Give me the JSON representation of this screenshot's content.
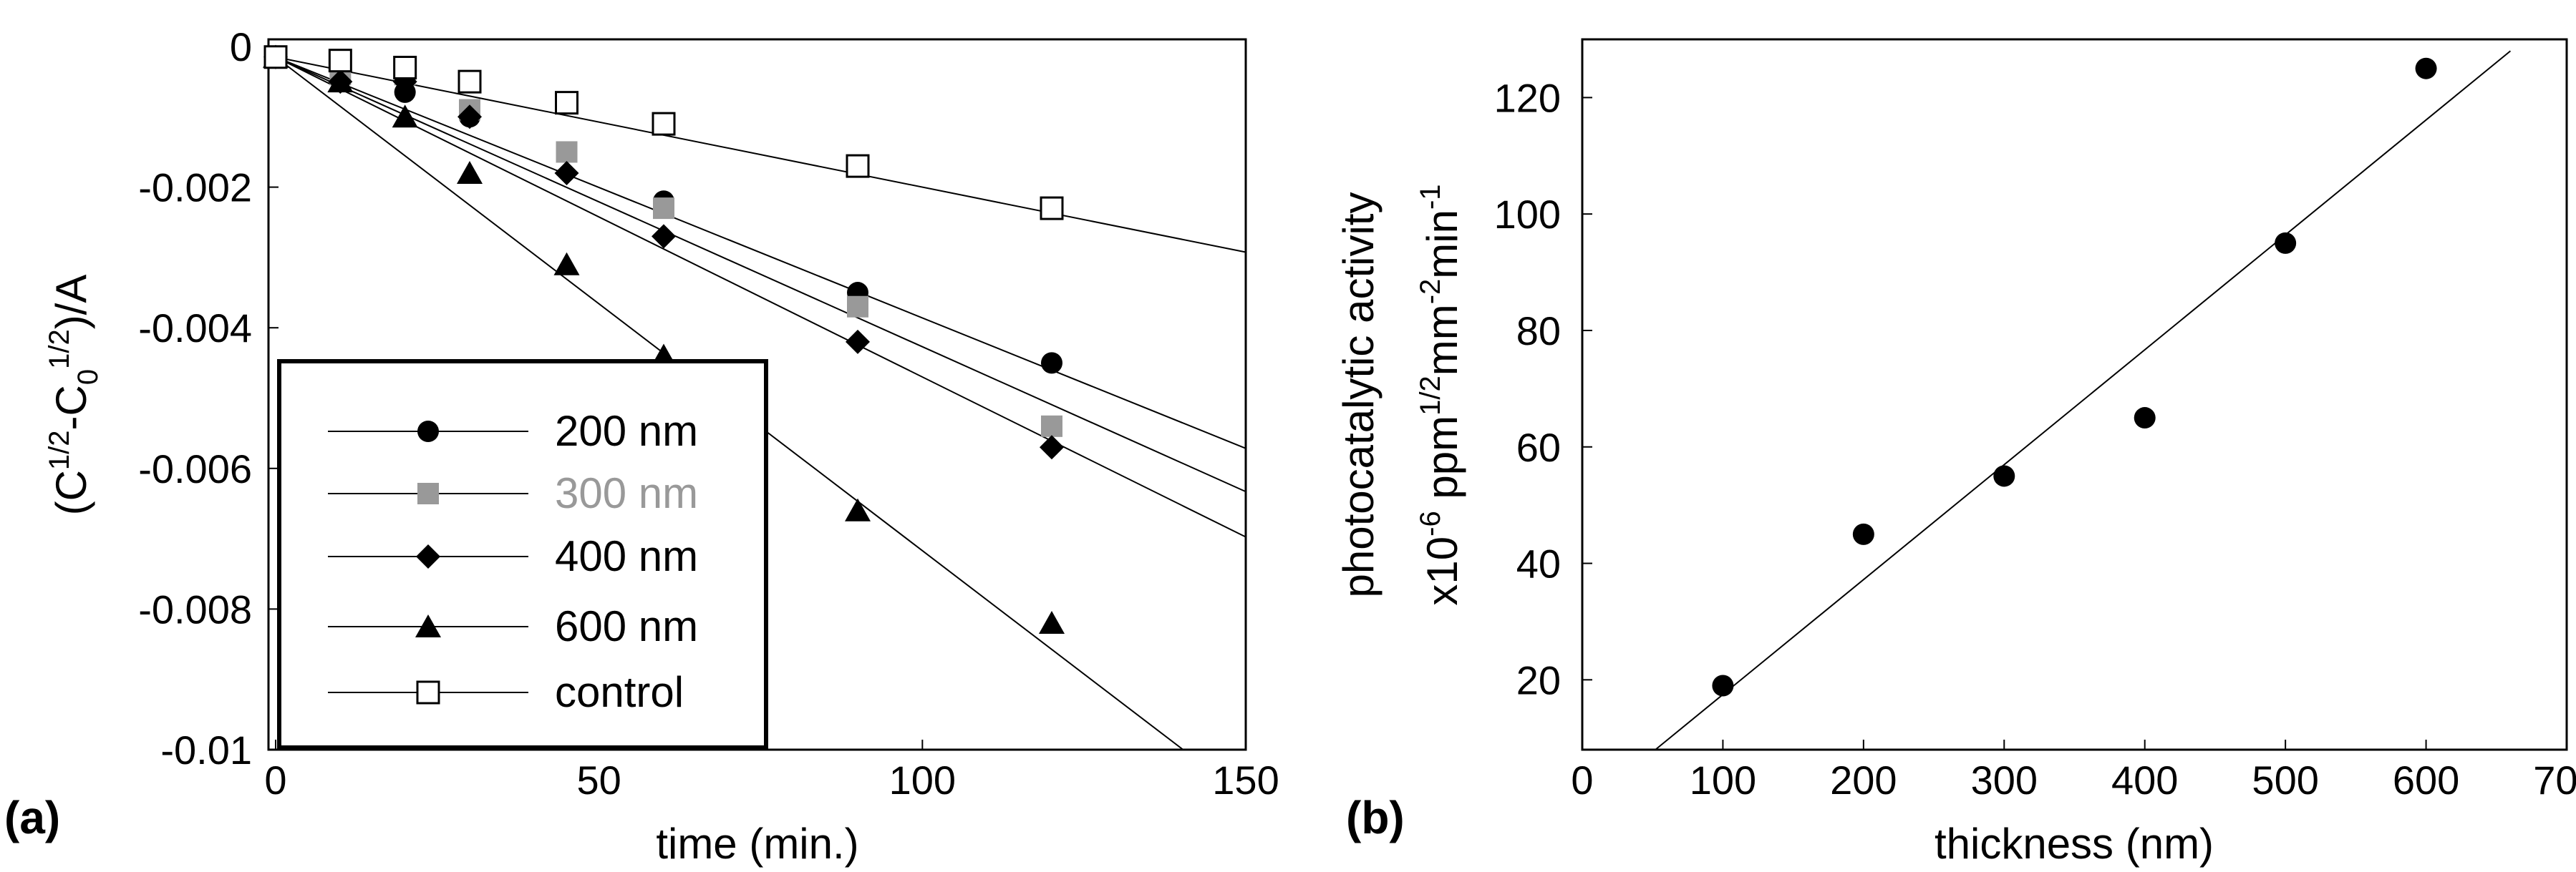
{
  "chart_data": [
    {
      "panel_label": "(a)",
      "type": "scatter",
      "xlabel": "time (min.)",
      "ylabel": {
        "base": "(C",
        "sup1": "1/2",
        "mid": "-C",
        "sub": "0",
        "sup2": "1/2",
        "tail": ")/A"
      },
      "xlim": [
        0,
        150
      ],
      "ylim": [
        -0.01,
        0
      ],
      "xticks": [
        0,
        50,
        100,
        150
      ],
      "xtick_labels": [
        "0",
        "50",
        "100",
        "150"
      ],
      "yticks": [
        0,
        -0.002,
        -0.004,
        -0.006,
        -0.008,
        -0.01
      ],
      "ytick_labels": [
        "0",
        "-0.002",
        "-0.004",
        "-0.006",
        "-0.008",
        "-0.01"
      ],
      "grid": false,
      "legend_position": "bottom-left",
      "series": [
        {
          "name": "200 nm",
          "marker": "circle",
          "color": "#000000",
          "x": [
            0,
            10,
            20,
            30,
            45,
            60,
            90,
            120
          ],
          "y": [
            -0.00015,
            -0.0003,
            -0.00065,
            -0.001,
            -0.0015,
            -0.0022,
            -0.0035,
            -0.0045
          ],
          "fit_slope": -3.71e-05
        },
        {
          "name": "300 nm",
          "marker": "square",
          "color": "#999999",
          "x": [
            0,
            10,
            20,
            30,
            45,
            60,
            90,
            120
          ],
          "y": [
            -0.00015,
            -0.0004,
            -0.0004,
            -0.0009,
            -0.0015,
            -0.0023,
            -0.0037,
            -0.0054
          ],
          "fit_slope": -4.12e-05
        },
        {
          "name": "400 nm",
          "marker": "diamond",
          "color": "#000000",
          "x": [
            0,
            10,
            20,
            30,
            45,
            60,
            90,
            120
          ],
          "y": [
            -0.00015,
            -0.0005,
            -0.0005,
            -0.001,
            -0.0018,
            -0.0027,
            -0.0042,
            -0.0057
          ],
          "fit_slope": -4.55e-05
        },
        {
          "name": "600 nm",
          "marker": "triangle",
          "color": "#000000",
          "x": [
            0,
            10,
            20,
            30,
            45,
            60,
            90,
            120
          ],
          "y": [
            -0.00015,
            -0.0005,
            -0.001,
            -0.0018,
            -0.0031,
            -0.0044,
            -0.0066,
            -0.0082
          ],
          "fit_slope": -7.02e-05
        },
        {
          "name": "control",
          "marker": "open-square",
          "color": "#000000",
          "x": [
            0,
            10,
            20,
            30,
            45,
            60,
            90,
            120
          ],
          "y": [
            -0.00015,
            -0.0002,
            -0.0003,
            -0.0005,
            -0.0008,
            -0.0011,
            -0.0017,
            -0.0023
          ],
          "fit_slope": -1.85e-05
        }
      ]
    },
    {
      "panel_label": "(b)",
      "type": "scatter",
      "xlabel": "thickness (nm)",
      "ylabel_line1": "photocatalytic activity",
      "ylabel_line2": {
        "a": "x10",
        "sup_a": "-6",
        "b": " ppm",
        "sup_b": "1/2",
        "c": "mm",
        "sup_c": "-2",
        "d": "min",
        "sup_d": "-1"
      },
      "xlim": [
        0,
        700
      ],
      "ylim": [
        8,
        130
      ],
      "xticks": [
        0,
        100,
        200,
        300,
        400,
        500,
        600,
        700
      ],
      "xtick_labels": [
        "0",
        "100",
        "200",
        "300",
        "400",
        "500",
        "600",
        "700"
      ],
      "yticks": [
        20,
        40,
        60,
        80,
        100,
        120
      ],
      "ytick_labels": [
        "20",
        "40",
        "60",
        "80",
        "100",
        "120"
      ],
      "grid": false,
      "series": [
        {
          "name": "activity",
          "marker": "circle",
          "color": "#000000",
          "x": [
            100,
            200,
            300,
            400,
            500,
            600
          ],
          "y": [
            19,
            45,
            55,
            65,
            95,
            125
          ]
        }
      ],
      "fit_line": {
        "x": [
          52,
          660
        ],
        "y": [
          8,
          128
        ]
      }
    }
  ]
}
